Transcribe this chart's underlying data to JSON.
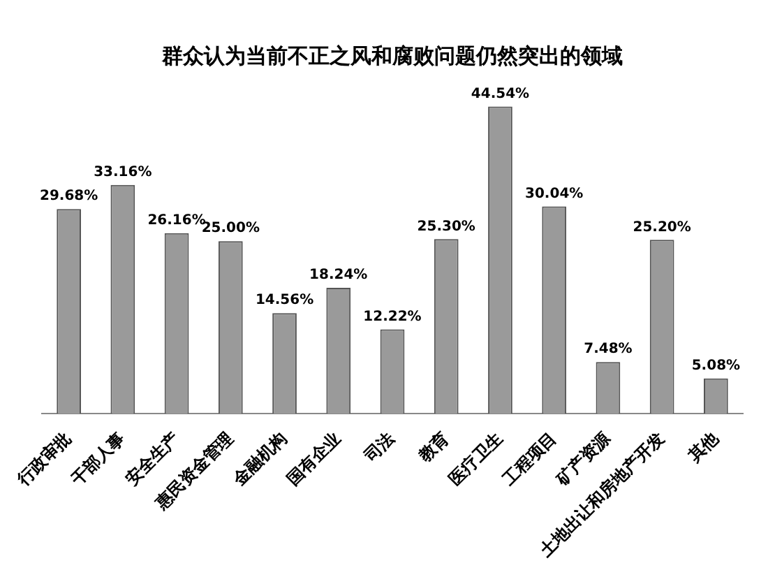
{
  "chart_data": {
    "type": "bar",
    "title": "群众认为当前不正之风和腐败问题仍然突出的领域",
    "categories": [
      "行政审批",
      "干部人事",
      "安全生产",
      "惠民资金管理",
      "金融机构",
      "国有企业",
      "司法",
      "教育",
      "医疗卫生",
      "工程项目",
      "矿产资源",
      "土地出让和房地产开发",
      "其他"
    ],
    "values": [
      29.68,
      33.16,
      26.16,
      25.0,
      14.56,
      18.24,
      12.22,
      25.3,
      44.54,
      30.04,
      7.48,
      25.2,
      5.08
    ],
    "value_labels": [
      "29.68%",
      "33.16%",
      "26.16%",
      "25.00%",
      "14.56%",
      "18.24%",
      "12.22%",
      "25.30%",
      "44.54%",
      "30.04%",
      "7.48%",
      "25.20%",
      "5.08%"
    ],
    "color": "#9a9a9a",
    "grid": false,
    "legend": false
  }
}
